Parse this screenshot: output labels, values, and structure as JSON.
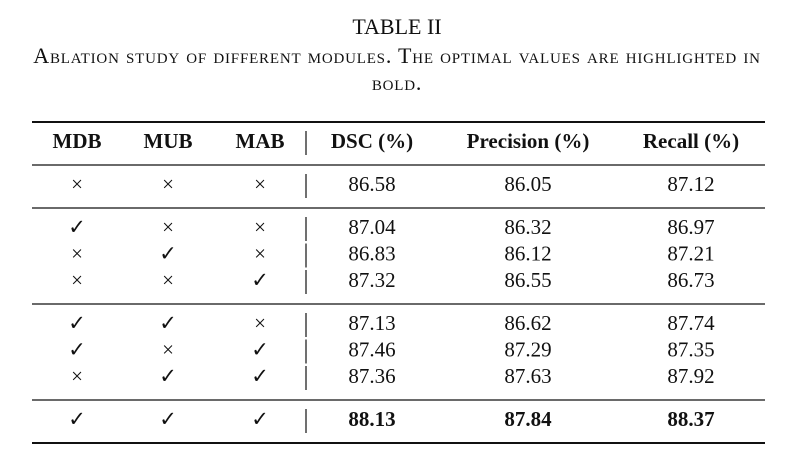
{
  "title": "TABLE II",
  "caption": "Ablation study of different modules. The optimal values are highlighted in bold.",
  "table": {
    "header": [
      "MDB",
      "MUB",
      "MAB",
      "DSC (%)",
      "Precision (%)",
      "Recall (%)"
    ],
    "groups": [
      {
        "rows": [
          [
            "×",
            "×",
            "×",
            "86.58",
            "86.05",
            "87.12"
          ]
        ]
      },
      {
        "rows": [
          [
            "✓",
            "×",
            "×",
            "87.04",
            "86.32",
            "86.97"
          ],
          [
            "×",
            "✓",
            "×",
            "86.83",
            "86.12",
            "87.21"
          ],
          [
            "×",
            "×",
            "✓",
            "87.32",
            "86.55",
            "86.73"
          ]
        ]
      },
      {
        "rows": [
          [
            "✓",
            "✓",
            "×",
            "87.13",
            "86.62",
            "87.74"
          ],
          [
            "✓",
            "×",
            "✓",
            "87.46",
            "87.29",
            "87.35"
          ],
          [
            "×",
            "✓",
            "✓",
            "87.36",
            "87.63",
            "87.92"
          ]
        ]
      },
      {
        "rows": [
          [
            "✓",
            "✓",
            "✓",
            "88.13",
            "87.84",
            "88.37"
          ]
        ],
        "bold": true
      }
    ]
  }
}
